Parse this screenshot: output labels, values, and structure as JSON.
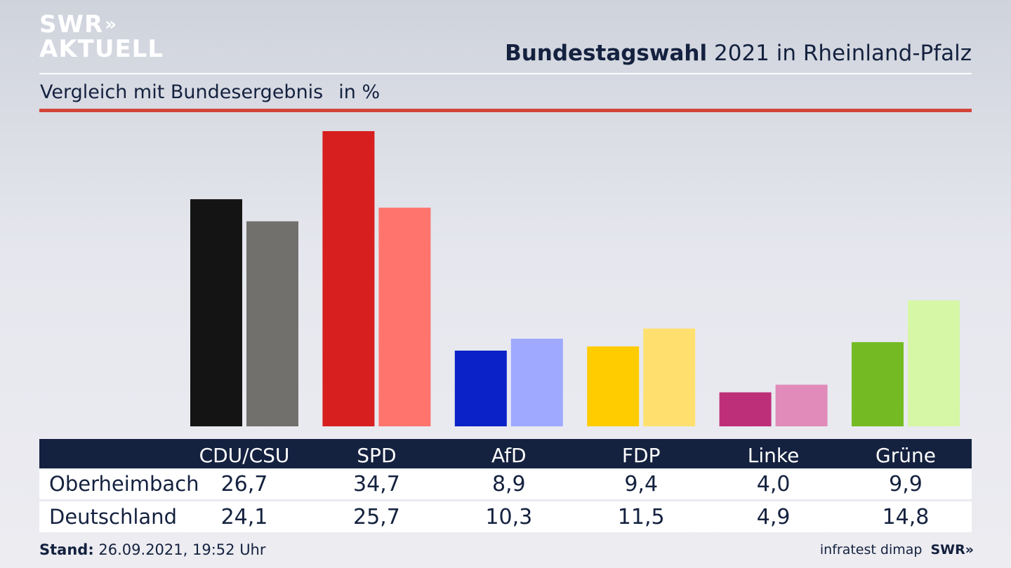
{
  "header": {
    "logo_line1": "SWR",
    "logo_arrows": "»",
    "logo_line2": "AKTUELL",
    "title_bold": "Bundestagswahl",
    "title_rest": "2021 in Rheinland-Pfalz",
    "subtitle": "Vergleich mit Bundesergebnis",
    "unit": "in %"
  },
  "chart_data": {
    "type": "bar",
    "title": "Bundestagswahl 2021 in Rheinland-Pfalz",
    "subtitle": "Vergleich mit Bundesergebnis",
    "unit": "in %",
    "categories": [
      "CDU/CSU",
      "SPD",
      "AfD",
      "FDP",
      "Linke",
      "Grüne"
    ],
    "series": [
      {
        "name": "Oberheimbach",
        "values": [
          26.7,
          34.7,
          8.9,
          9.4,
          4.0,
          9.9
        ],
        "labels": [
          "26,7",
          "34,7",
          "8,9",
          "9,4",
          "4,0",
          "9,9"
        ],
        "colors": [
          "#141414",
          "#d71f1f",
          "#0a22c8",
          "#ffcc00",
          "#bd2f79",
          "#74bb23"
        ]
      },
      {
        "name": "Deutschland",
        "values": [
          24.1,
          25.7,
          10.3,
          11.5,
          4.9,
          14.8
        ],
        "labels": [
          "24,1",
          "25,7",
          "10,3",
          "11,5",
          "4,9",
          "14,8"
        ],
        "colors": [
          "#72706d",
          "#ff746d",
          "#9ea9ff",
          "#ffe06e",
          "#e08bb9",
          "#d6f7a6"
        ]
      }
    ],
    "ylim": [
      0,
      34.7
    ],
    "grid": false,
    "legend": "table-below"
  },
  "footer": {
    "stand_label": "Stand:",
    "stand_value": "26.09.2021, 19:52 Uhr",
    "source": "infratest dimap",
    "brand": "SWR",
    "brand_arrows": "»"
  }
}
